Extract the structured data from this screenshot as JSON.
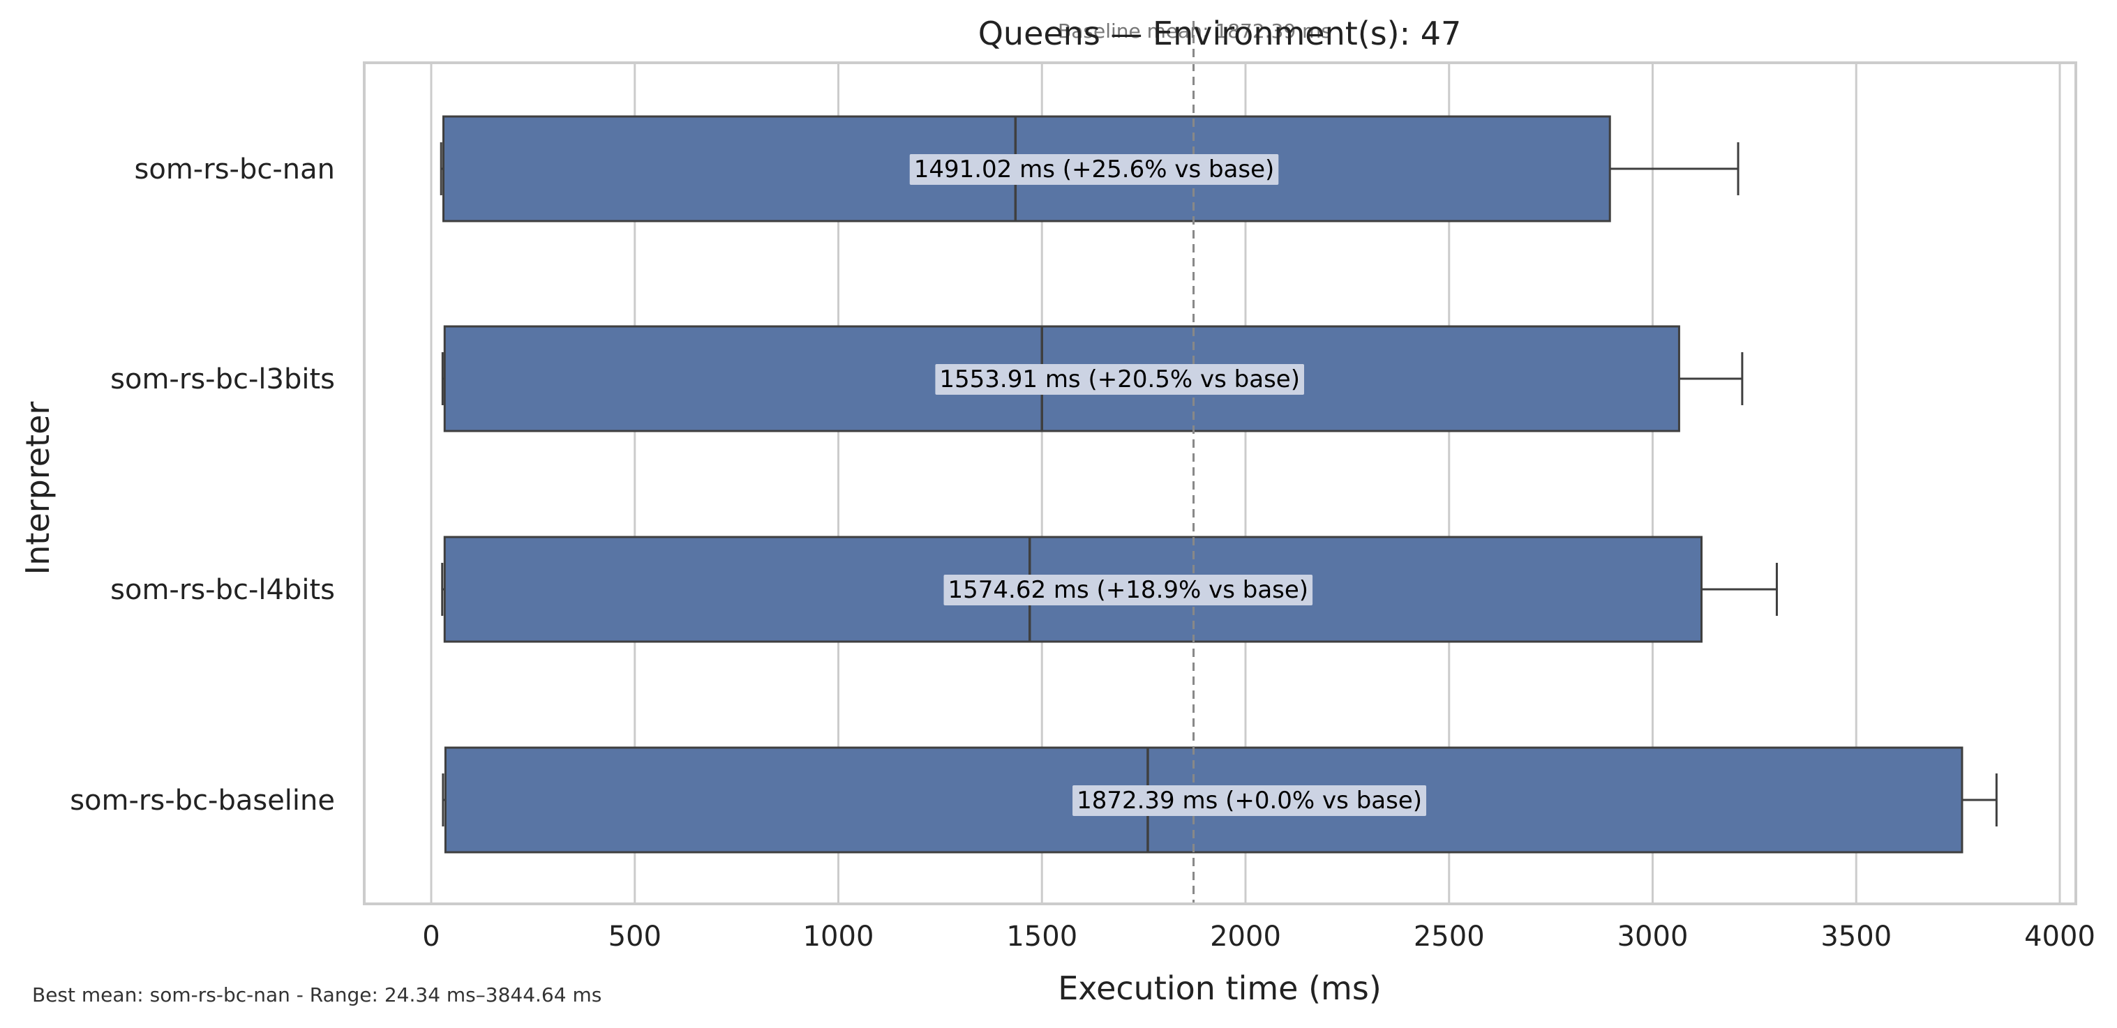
{
  "chart_data": {
    "type": "boxplot",
    "orientation": "horizontal",
    "title": "Queens — Environment(s): 47",
    "xlabel": "Execution time (ms)",
    "ylabel": "Interpreter",
    "xlim": [
      -160,
      4040
    ],
    "xticks": [
      0,
      500,
      1000,
      1500,
      2000,
      2500,
      3000,
      3500,
      4000
    ],
    "xtick_labels": [
      "0",
      "500",
      "1000",
      "1500",
      "2000",
      "2500",
      "3000",
      "3500",
      "4000"
    ],
    "grid": true,
    "categories": [
      "som-rs-bc-nan",
      "som-rs-bc-l3bits",
      "som-rs-bc-l4bits",
      "som-rs-bc-baseline"
    ],
    "boxes": [
      {
        "name": "som-rs-bc-nan",
        "whisker_low": 24.34,
        "q1": 30,
        "median": 1435,
        "q3": 2895,
        "whisker_high": 3210,
        "mean": 1491.02,
        "label": "1491.02 ms  (+25.6% vs base)"
      },
      {
        "name": "som-rs-bc-l3bits",
        "whisker_low": 28,
        "q1": 33,
        "median": 1500,
        "q3": 3065,
        "whisker_high": 3220,
        "mean": 1553.91,
        "label": "1553.91 ms  (+20.5% vs base)"
      },
      {
        "name": "som-rs-bc-l4bits",
        "whisker_low": 27,
        "q1": 33,
        "median": 1470,
        "q3": 3120,
        "whisker_high": 3305,
        "mean": 1574.62,
        "label": "1574.62 ms  (+18.9% vs base)"
      },
      {
        "name": "som-rs-bc-baseline",
        "whisker_low": 29,
        "q1": 35,
        "median": 1760,
        "q3": 3760,
        "whisker_high": 3844.64,
        "mean": 1872.39,
        "label": "1872.39 ms  (+0.0% vs base)"
      }
    ],
    "baseline_mean": 1872.39,
    "baseline_label": "Baseline mean: 1872.39 ms",
    "footnote": "Best mean: som-rs-bc-nan - Range: 24.34 ms–3844.64 ms",
    "colors": {
      "box_fill": "#5975a4",
      "box_edge": "#3f3f3f",
      "grid": "#cccccc",
      "frame": "#cccccc",
      "baseline_line": "#888888",
      "label_bg": "#ccd3e3"
    }
  }
}
